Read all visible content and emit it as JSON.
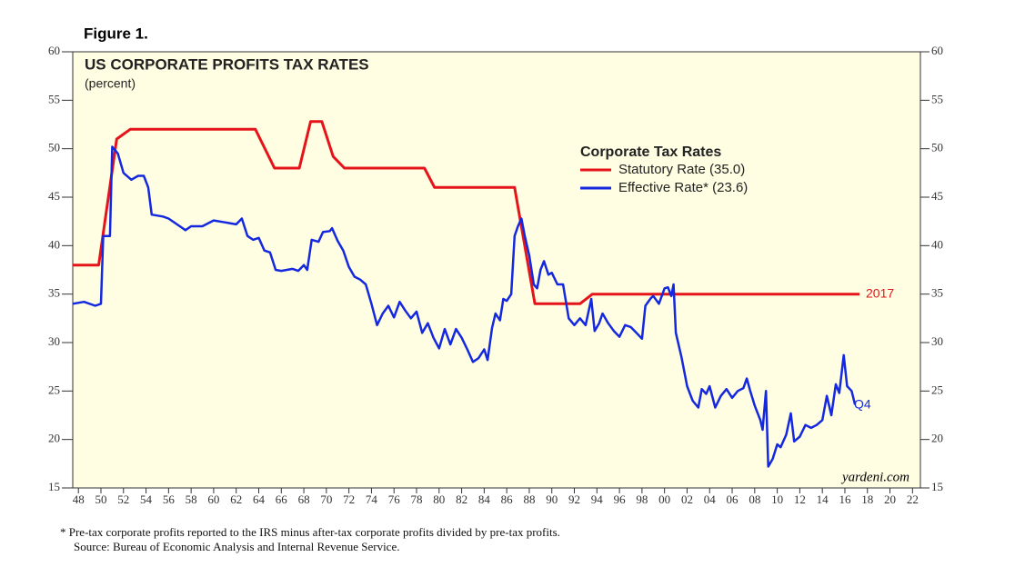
{
  "chart_data": {
    "type": "line",
    "figure_label": "Figure 1.",
    "title": "US CORPORATE PROFITS TAX RATES",
    "subtitle": "(percent)",
    "legend_title": "Corporate Tax Rates",
    "legend": "upper-center-right",
    "background": "#fffde2",
    "annotations": [
      "2017",
      "Q4",
      "yardeni.com"
    ],
    "footnotes": [
      "*  Pre-tax corporate profits reported to the IRS minus after-tax corporate profits divided by pre-tax profits.",
      "Source: Bureau of Economic Analysis and Internal Revenue Service."
    ],
    "xlim": [
      1947.5,
      2022.7
    ],
    "ylim": [
      15,
      60
    ],
    "yticks": [
      15,
      20,
      25,
      30,
      35,
      40,
      45,
      50,
      55,
      60
    ],
    "xticks": [
      {
        "value": 1948,
        "label": "48"
      },
      {
        "value": 1950,
        "label": "50"
      },
      {
        "value": 1952,
        "label": "52"
      },
      {
        "value": 1954,
        "label": "54"
      },
      {
        "value": 1956,
        "label": "56"
      },
      {
        "value": 1958,
        "label": "58"
      },
      {
        "value": 1960,
        "label": "60"
      },
      {
        "value": 1962,
        "label": "62"
      },
      {
        "value": 1964,
        "label": "64"
      },
      {
        "value": 1966,
        "label": "66"
      },
      {
        "value": 1968,
        "label": "68"
      },
      {
        "value": 1970,
        "label": "70"
      },
      {
        "value": 1972,
        "label": "72"
      },
      {
        "value": 1974,
        "label": "74"
      },
      {
        "value": 1976,
        "label": "76"
      },
      {
        "value": 1978,
        "label": "78"
      },
      {
        "value": 1980,
        "label": "80"
      },
      {
        "value": 1982,
        "label": "82"
      },
      {
        "value": 1984,
        "label": "84"
      },
      {
        "value": 1986,
        "label": "86"
      },
      {
        "value": 1988,
        "label": "88"
      },
      {
        "value": 1990,
        "label": "90"
      },
      {
        "value": 1992,
        "label": "92"
      },
      {
        "value": 1994,
        "label": "94"
      },
      {
        "value": 1996,
        "label": "96"
      },
      {
        "value": 1998,
        "label": "98"
      },
      {
        "value": 2000,
        "label": "00"
      },
      {
        "value": 2002,
        "label": "02"
      },
      {
        "value": 2004,
        "label": "04"
      },
      {
        "value": 2006,
        "label": "06"
      },
      {
        "value": 2008,
        "label": "08"
      },
      {
        "value": 2010,
        "label": "10"
      },
      {
        "value": 2012,
        "label": "12"
      },
      {
        "value": 2014,
        "label": "14"
      },
      {
        "value": 2016,
        "label": "16"
      },
      {
        "value": 2018,
        "label": "18"
      },
      {
        "value": 2020,
        "label": "20"
      },
      {
        "value": 2022,
        "label": "22"
      }
    ],
    "series": [
      {
        "name": "Statutory Rate (35.0)",
        "color": "#e5141b",
        "x": [
          1947.5,
          1949.8,
          1951.4,
          1952.6,
          1963.7,
          1965.4,
          1967.6,
          1968.6,
          1969.6,
          1970.6,
          1971.6,
          1978.7,
          1979.6,
          1986.7,
          1988.5,
          1992.5,
          1993.6,
          2017.3
        ],
        "values": [
          38,
          38,
          51,
          52,
          52,
          48,
          48,
          52.8,
          52.8,
          49.2,
          48,
          48,
          46,
          46,
          34,
          34,
          35,
          35
        ]
      },
      {
        "name": "Effective Rate*  (23.6)",
        "color": "#1428e0",
        "x": [
          1947.5,
          1948.5,
          1949.5,
          1950,
          1950.2,
          1950.8,
          1951,
          1951.5,
          1952,
          1952.7,
          1953.3,
          1953.8,
          1954.2,
          1954.5,
          1955.5,
          1956,
          1957,
          1957.5,
          1958,
          1959,
          1960,
          1961,
          1962,
          1962.5,
          1963,
          1963.5,
          1964,
          1964.5,
          1965,
          1965.5,
          1966,
          1967,
          1967.5,
          1968,
          1968.3,
          1968.7,
          1969.3,
          1969.7,
          1970.3,
          1970.5,
          1971,
          1971.5,
          1972,
          1972.5,
          1973,
          1973.5,
          1974,
          1974.5,
          1975,
          1975.5,
          1976,
          1976.5,
          1977,
          1977.5,
          1978,
          1978.5,
          1979,
          1979.5,
          1980,
          1980.5,
          1981,
          1981.5,
          1982,
          1982.5,
          1983,
          1983.5,
          1984,
          1984.3,
          1984.7,
          1985,
          1985.4,
          1985.7,
          1986,
          1986.4,
          1986.7,
          1987,
          1987.3,
          1987.6,
          1988,
          1988.4,
          1988.7,
          1989,
          1989.3,
          1989.7,
          1990,
          1990.5,
          1991,
          1991.5,
          1992,
          1992.5,
          1993,
          1993.5,
          1993.8,
          1994.2,
          1994.5,
          1995,
          1995.5,
          1996,
          1996.5,
          1997,
          1997.5,
          1998,
          1998.3,
          1998.8,
          1999,
          1999.5,
          2000,
          2000.3,
          2000.6,
          2000.8,
          2001,
          2001.5,
          2002,
          2002.5,
          2003,
          2003.3,
          2003.7,
          2004,
          2004.5,
          2005,
          2005.5,
          2006,
          2006.5,
          2007,
          2007.3,
          2007.6,
          2008,
          2008.5,
          2008.7,
          2009,
          2009.2,
          2009.6,
          2010,
          2010.3,
          2010.8,
          2011.2,
          2011.5,
          2012,
          2012.5,
          2013,
          2013.5,
          2014,
          2014.4,
          2014.8,
          2015.2,
          2015.5,
          2015.9,
          2016.2,
          2016.6,
          2016.9
        ],
        "values": [
          34,
          34.2,
          33.8,
          34,
          41,
          41,
          50.2,
          49.5,
          47.5,
          46.8,
          47.2,
          47.2,
          46,
          43.2,
          43,
          42.8,
          42,
          41.6,
          42,
          42,
          42.6,
          42.4,
          42.2,
          42.8,
          41,
          40.6,
          40.8,
          39.5,
          39.3,
          37.5,
          37.4,
          37.6,
          37.4,
          38,
          37.5,
          40.6,
          40.4,
          41.4,
          41.5,
          41.8,
          40.5,
          39.5,
          37.8,
          36.8,
          36.5,
          36,
          34,
          31.8,
          33,
          33.8,
          32.6,
          34.2,
          33.3,
          32.5,
          33.2,
          31,
          32,
          30.5,
          29.4,
          31.4,
          29.8,
          31.4,
          30.5,
          29.3,
          28,
          28.4,
          29.3,
          28.2,
          31.5,
          33,
          32.3,
          34.5,
          34.3,
          35,
          41,
          42,
          42.8,
          41,
          39,
          36,
          35.6,
          37.5,
          38.4,
          37,
          37.2,
          36,
          36,
          32.5,
          31.8,
          32.5,
          31.8,
          34.5,
          31.2,
          32,
          33,
          32,
          31.2,
          30.6,
          31.8,
          31.6,
          31,
          30.4,
          33.8,
          34.6,
          34.8,
          34,
          35.6,
          35.7,
          34.8,
          36,
          31,
          28.5,
          25.5,
          24,
          23.3,
          25.2,
          24.7,
          25.5,
          23.3,
          24.5,
          25.2,
          24.3,
          25,
          25.3,
          26.3,
          25,
          23.5,
          22,
          21,
          25,
          17.2,
          18,
          19.5,
          19.2,
          20.5,
          22.7,
          19.8,
          20.3,
          21.5,
          21.2,
          21.5,
          22,
          24.5,
          22.5,
          25.7,
          24.8,
          28.7,
          25.5,
          25,
          23.6
        ]
      }
    ]
  }
}
